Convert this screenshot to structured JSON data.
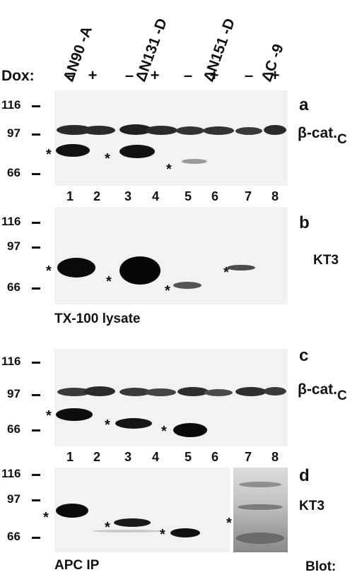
{
  "figure": {
    "constructs": [
      "ΔN90 -A",
      "ΔN131 -D",
      "ΔN151 -D",
      "ΔC -9"
    ],
    "dox_label": "Dox:",
    "dox_states": [
      "–",
      "+",
      "–",
      "+",
      "–",
      "+",
      "–",
      "+"
    ],
    "lane_numbers": [
      "1",
      "2",
      "3",
      "4",
      "5",
      "6",
      "7",
      "8"
    ],
    "star_symbol": "*",
    "panels": {
      "a": {
        "letter": "a",
        "markers": [
          "116",
          "97",
          "66"
        ],
        "antibody": "β-cat.",
        "antibody_sub": "C",
        "starred_lanes": [
          1,
          3,
          5
        ]
      },
      "b": {
        "letter": "b",
        "markers": [
          "116",
          "97",
          "66"
        ],
        "antibody": "KT3",
        "starred_lanes": [
          1,
          3,
          5,
          7
        ],
        "caption": "TX-100 lysate"
      },
      "c": {
        "letter": "c",
        "markers": [
          "116",
          "97",
          "66"
        ],
        "antibody": "β-cat.",
        "antibody_sub": "C",
        "starred_lanes": [
          1,
          3,
          5
        ]
      },
      "d": {
        "letter": "d",
        "markers": [
          "116",
          "97",
          "66"
        ],
        "antibody": "KT3",
        "starred_lanes": [
          1,
          3,
          5,
          7
        ],
        "caption": "APC IP"
      }
    },
    "blot_label": "Blot:"
  }
}
